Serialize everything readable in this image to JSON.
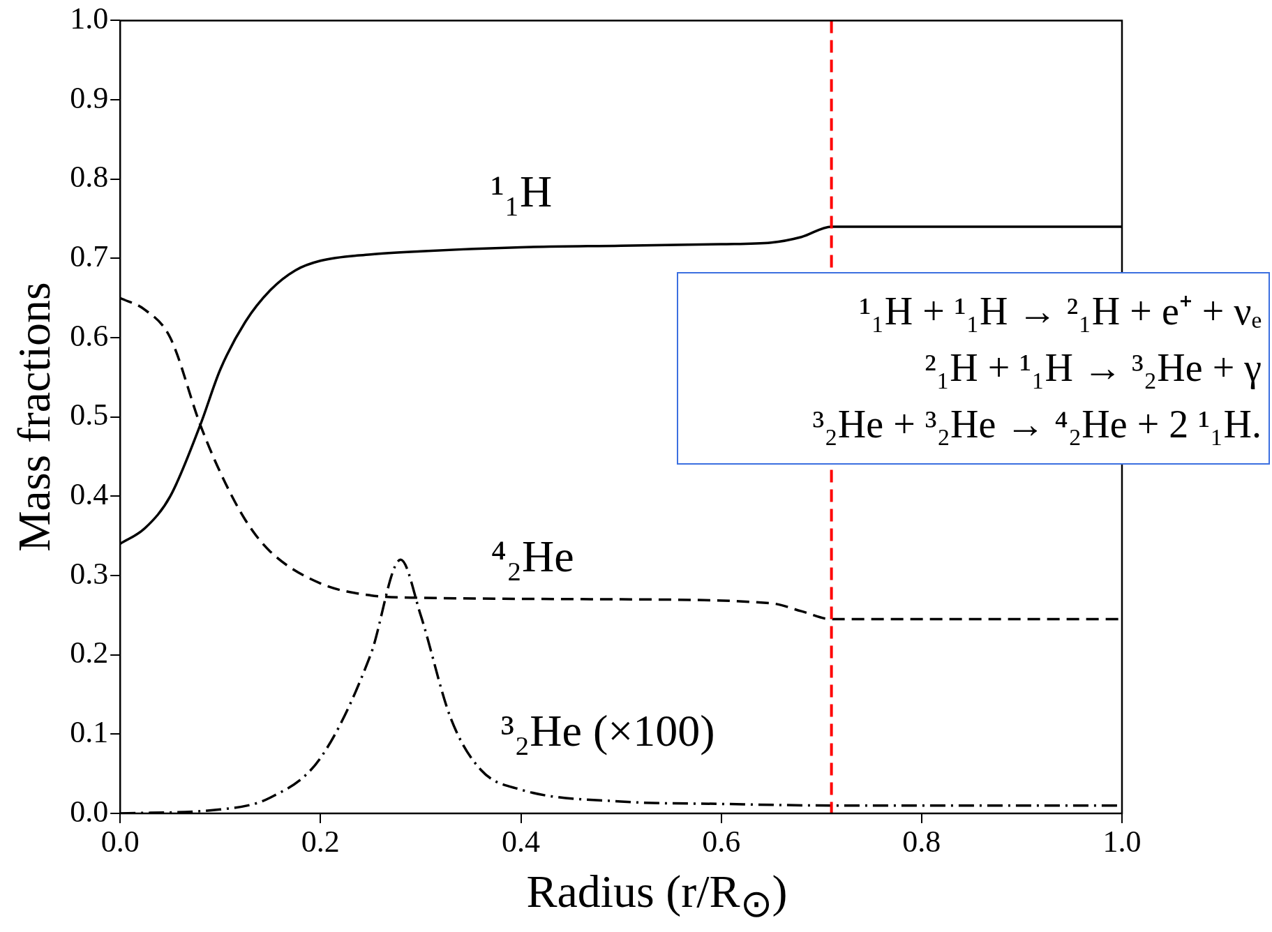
{
  "chart_data": {
    "type": "line",
    "xlabel": "Radius (r/R$_{⊙}$)",
    "ylabel": "Mass fractions",
    "xlim": [
      0,
      1
    ],
    "ylim": [
      0,
      1
    ],
    "xticks": [
      {
        "value": 0,
        "label": "0.0"
      },
      0.2,
      0.4,
      0.6,
      0.8,
      {
        "value": 1,
        "label": "1.0"
      }
    ],
    "yticks": [
      {
        "value": 0,
        "label": "0.0"
      },
      0.1,
      0.2,
      0.3,
      0.4,
      0.5,
      0.6,
      0.7,
      0.8,
      0.9,
      {
        "value": 1,
        "label": "1.0"
      }
    ],
    "grid": false,
    "legend": false,
    "marker": "none",
    "series": [
      {
        "name": "¹₁H",
        "color": "#000000",
        "line_style": "solid",
        "x": [
          0,
          0.025,
          0.05,
          0.08,
          0.1,
          0.125,
          0.15,
          0.175,
          0.2,
          0.25,
          0.3,
          0.4,
          0.5,
          0.6,
          0.65,
          0.68,
          0.71,
          1.0
        ],
        "values": [
          0.34,
          0.36,
          0.4,
          0.49,
          0.56,
          0.62,
          0.66,
          0.685,
          0.697,
          0.705,
          0.709,
          0.714,
          0.716,
          0.718,
          0.72,
          0.727,
          0.74,
          0.74
        ]
      },
      {
        "name": "⁴₂He",
        "color": "#000000",
        "line_style": "dashed",
        "x": [
          0,
          0.025,
          0.05,
          0.08,
          0.1,
          0.125,
          0.15,
          0.2,
          0.25,
          0.3,
          0.5,
          0.65,
          0.68,
          0.71,
          1.0
        ],
        "values": [
          0.65,
          0.635,
          0.6,
          0.49,
          0.43,
          0.37,
          0.33,
          0.29,
          0.275,
          0.272,
          0.27,
          0.265,
          0.255,
          0.245,
          0.245
        ]
      },
      {
        "name": "³₂He (×100)",
        "color": "#000000",
        "line_style": "dashdot",
        "x": [
          0,
          0.1,
          0.15,
          0.2,
          0.25,
          0.28,
          0.3,
          0.33,
          0.36,
          0.4,
          0.5,
          0.6,
          0.71,
          1.0
        ],
        "values": [
          0,
          0.005,
          0.02,
          0.07,
          0.2,
          0.32,
          0.25,
          0.12,
          0.055,
          0.03,
          0.015,
          0.012,
          0.01,
          0.01
        ]
      }
    ],
    "ref_lines": [
      {
        "axis": "x",
        "value": 0.71,
        "color": "#ff0000",
        "line_style": "dashed"
      }
    ],
    "annotations": [
      "¹₁H + ¹₁H → ²₁H + e⁺ + νₑ",
      "²₁H + ¹₁H → ³₂He + γ",
      "³₂He + ³₂He → ⁴₂He + 2 ¹₁H."
    ]
  }
}
